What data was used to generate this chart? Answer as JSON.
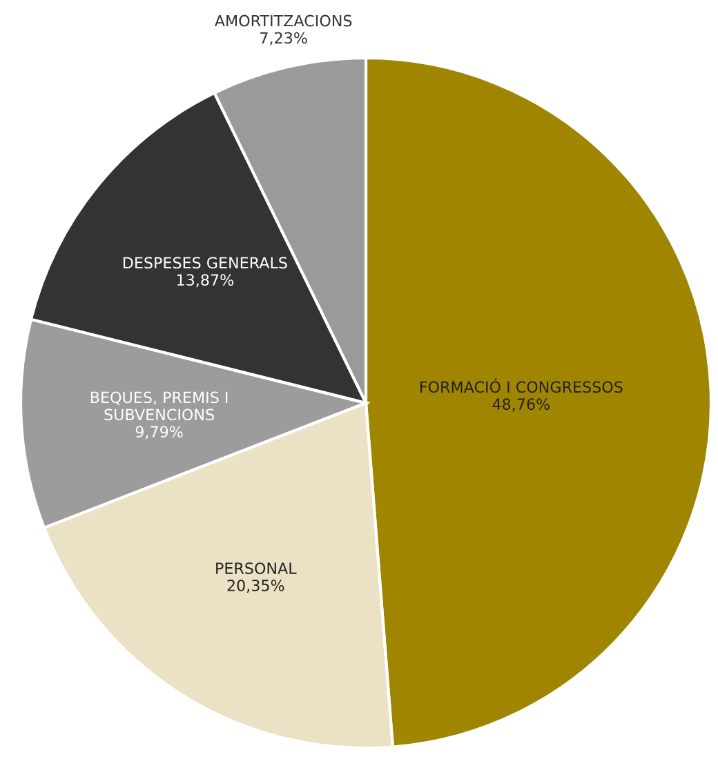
{
  "chart_data": {
    "type": "pie",
    "categories": [
      "FORMACIÓ I CONGRESSOS",
      "PERSONAL",
      "BEQUES, PREMIS I\nSUBVENCIONS",
      "DESPESES GENERALS",
      "AMORTITZACIONS"
    ],
    "values": [
      48.76,
      20.35,
      9.79,
      13.87,
      7.23
    ],
    "value_labels": [
      "48,76%",
      "20,35%",
      "9,79%",
      "13,87%",
      "7,23%"
    ],
    "colors": [
      "#a08600",
      "#ebe2c6",
      "#9c9c9c",
      "#333333",
      "#999a99"
    ]
  }
}
